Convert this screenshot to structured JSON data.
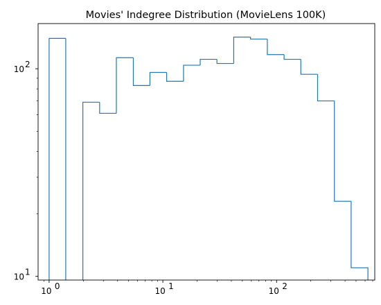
{
  "chart_data": {
    "type": "histogram",
    "title": "Movies' Indegree Distribution (MovieLens 100K)",
    "xlabel": "",
    "ylabel": "",
    "xscale": "log",
    "yscale": "log",
    "xlim": [
      0.8,
      730
    ],
    "ylim": [
      9.6,
      165
    ],
    "x_ticks": [
      {
        "value": 1,
        "base": "10",
        "exp": "0"
      },
      {
        "value": 10,
        "base": "10",
        "exp": "1"
      },
      {
        "value": 100,
        "base": "10",
        "exp": "2"
      }
    ],
    "y_ticks": [
      {
        "value": 10,
        "base": "10",
        "exp": "1"
      },
      {
        "value": 100,
        "base": "10",
        "exp": "2"
      }
    ],
    "bins": [
      {
        "x0": 1.0,
        "x1": 1.4,
        "count": 140
      },
      {
        "x0": 1.4,
        "x1": 1.98,
        "count": 0
      },
      {
        "x0": 1.98,
        "x1": 2.78,
        "count": 69
      },
      {
        "x0": 2.78,
        "x1": 3.9,
        "count": 61
      },
      {
        "x0": 3.9,
        "x1": 5.5,
        "count": 113
      },
      {
        "x0": 5.5,
        "x1": 7.7,
        "count": 83
      },
      {
        "x0": 7.7,
        "x1": 10.8,
        "count": 96
      },
      {
        "x0": 10.8,
        "x1": 15.2,
        "count": 87
      },
      {
        "x0": 15.2,
        "x1": 21.3,
        "count": 104
      },
      {
        "x0": 21.3,
        "x1": 29.9,
        "count": 111
      },
      {
        "x0": 29.9,
        "x1": 42.0,
        "count": 106
      },
      {
        "x0": 42.0,
        "x1": 59.0,
        "count": 142
      },
      {
        "x0": 59.0,
        "x1": 82.9,
        "count": 139
      },
      {
        "x0": 82.9,
        "x1": 116.4,
        "count": 117
      },
      {
        "x0": 116.4,
        "x1": 163.4,
        "count": 111
      },
      {
        "x0": 163.4,
        "x1": 229.5,
        "count": 94
      },
      {
        "x0": 229.5,
        "x1": 322.3,
        "count": 70
      },
      {
        "x0": 322.3,
        "x1": 452.6,
        "count": 23
      },
      {
        "x0": 452.6,
        "x1": 635.6,
        "count": 11
      }
    ],
    "color": "#1f77b4",
    "histtype": "step",
    "grid": false,
    "legend": false
  }
}
